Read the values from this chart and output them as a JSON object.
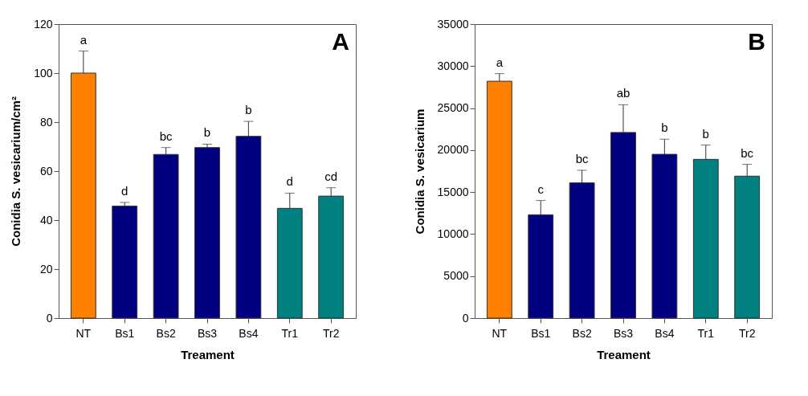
{
  "chart_data": [
    {
      "type": "bar",
      "xlabel": "Treament",
      "ylabel": "Conidia S. vesicarium/cm²",
      "categories": [
        "NT",
        "Bs1",
        "Bs2",
        "Bs3",
        "Bs4",
        "Tr1",
        "Tr2"
      ],
      "values": [
        100,
        45.7,
        66.8,
        69.6,
        74.2,
        44.8,
        49.8
      ],
      "errors": [
        [
          100,
          109
        ],
        [
          45.7,
          47.2
        ],
        [
          66.8,
          69.6
        ],
        [
          69.6,
          71
        ],
        [
          74.2,
          80.3
        ],
        [
          44.8,
          51
        ],
        [
          49.8,
          53.2
        ]
      ],
      "colors": [
        "#ff8000",
        "#000080",
        "#000080",
        "#000080",
        "#000080",
        "#008080",
        "#008080"
      ],
      "ylim": [
        0,
        120
      ],
      "yticks": [
        0,
        20,
        40,
        60,
        80,
        100,
        120
      ],
      "grid": false,
      "annotations": [
        "A",
        {
          "text": "a",
          "x": "NT",
          "y": 109
        },
        {
          "text": "d",
          "x": "Bs1",
          "y": 47.2
        },
        {
          "text": "bc",
          "x": "Bs2",
          "y": 69.6
        },
        {
          "text": "b",
          "x": "Bs3",
          "y": 71
        },
        {
          "text": "b",
          "x": "Bs4",
          "y": 80.3
        },
        {
          "text": "d",
          "x": "Tr1",
          "y": 51
        },
        {
          "text": "cd",
          "x": "Tr2",
          "y": 53.2
        }
      ]
    },
    {
      "type": "bar",
      "xlabel": "Treament",
      "ylabel": "Conidia S. vesicarium",
      "categories": [
        "NT",
        "Bs1",
        "Bs2",
        "Bs3",
        "Bs4",
        "Tr1",
        "Tr2"
      ],
      "values": [
        28200,
        12300,
        16100,
        22100,
        19500,
        18900,
        16900
      ],
      "errors": [
        [
          28200,
          29100
        ],
        [
          12300,
          14000
        ],
        [
          16100,
          17600
        ],
        [
          22100,
          25400
        ],
        [
          19500,
          21300
        ],
        [
          18900,
          20600
        ],
        [
          16900,
          18300
        ]
      ],
      "colors": [
        "#ff8000",
        "#000080",
        "#000080",
        "#000080",
        "#000080",
        "#008080",
        "#008080"
      ],
      "ylim": [
        0,
        35000
      ],
      "yticks": [
        0,
        5000,
        10000,
        15000,
        20000,
        25000,
        30000,
        35000
      ],
      "grid": false,
      "annotations": [
        "B",
        {
          "text": "a",
          "x": "NT",
          "y": 29100
        },
        {
          "text": "c",
          "x": "Bs1",
          "y": 14000
        },
        {
          "text": "bc",
          "x": "Bs2",
          "y": 17600
        },
        {
          "text": "ab",
          "x": "Bs3",
          "y": 25400
        },
        {
          "text": "b",
          "x": "Bs4",
          "y": 21300
        },
        {
          "text": "b",
          "x": "Tr1",
          "y": 20600
        },
        {
          "text": "bc",
          "x": "Tr2",
          "y": 18300
        }
      ]
    }
  ]
}
